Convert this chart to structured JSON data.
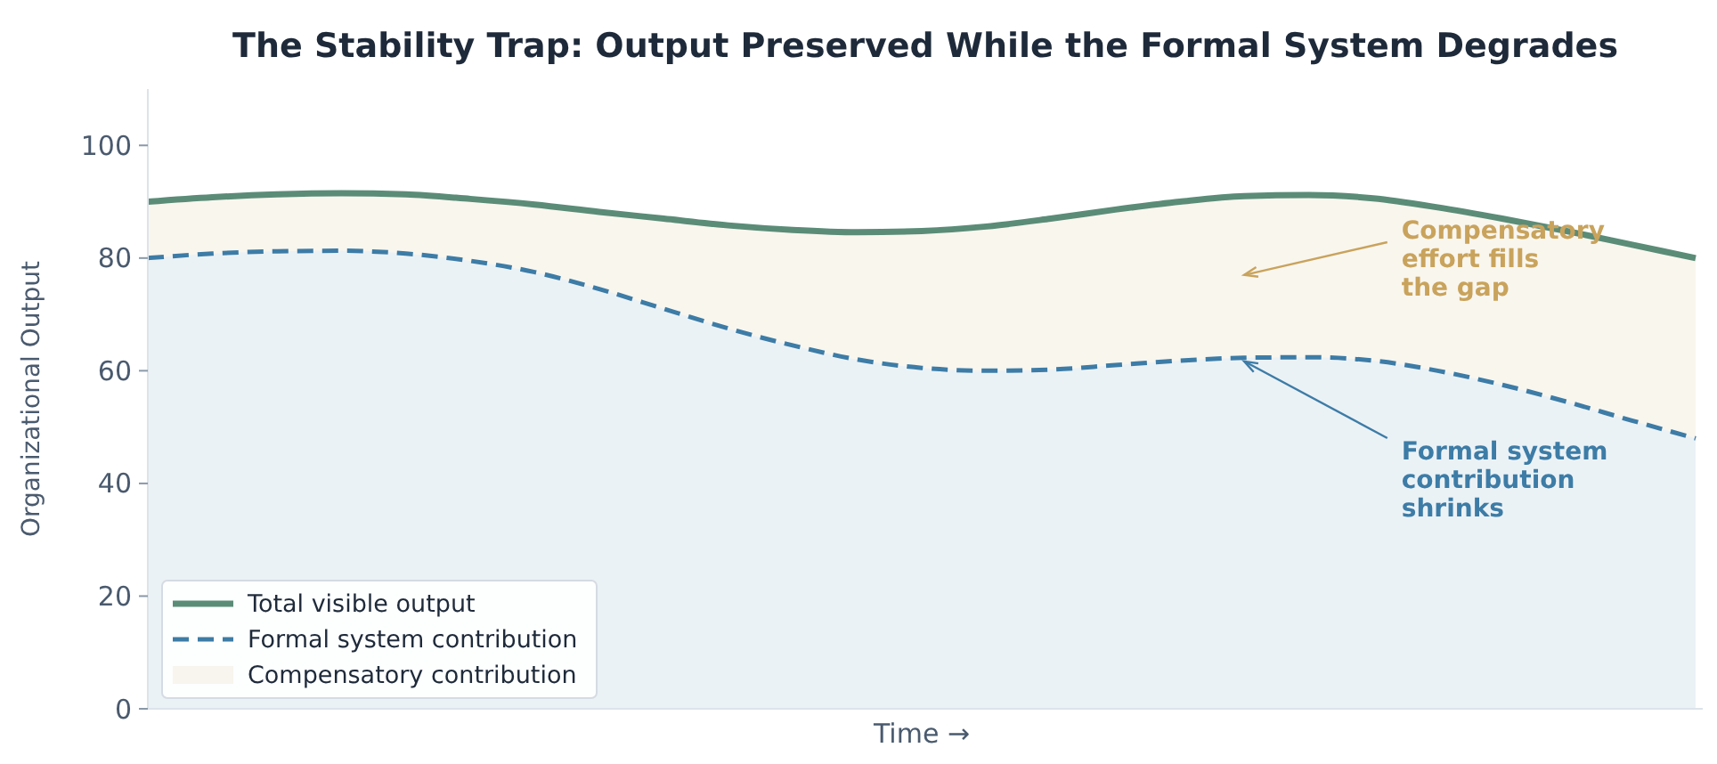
{
  "chart_data": {
    "type": "line",
    "title": "The Stability Trap: Output Preserved While the Formal System Degrades",
    "xlabel": "Time →",
    "ylabel": "Organizational Output",
    "categories": [
      null,
      null,
      null,
      null,
      null,
      null,
      null,
      null,
      null,
      null,
      null,
      null,
      null,
      null,
      null,
      null,
      null,
      null,
      null,
      null,
      null,
      null,
      null,
      null,
      null
    ],
    "stacked": true,
    "series": [
      {
        "name": "Total visible output",
        "color": "#5b8c78",
        "line_style": "solid",
        "values": [
          90,
          90.8,
          91.3,
          91.5,
          91.3,
          90.5,
          89.5,
          88.2,
          87,
          85.8,
          85,
          84.6,
          84.8,
          85.6,
          87,
          88.6,
          90,
          91,
          91.2,
          90.6,
          89,
          87,
          84.8,
          82.4,
          80
        ]
      },
      {
        "name": "Formal system contribution",
        "type": "area",
        "color": "#3d7ca6",
        "line_style": "dashed",
        "values": [
          80,
          80.8,
          81.2,
          81.3,
          80.8,
          79.5,
          77.5,
          74.5,
          71,
          67.5,
          64.5,
          62,
          60.5,
          60,
          60.2,
          61,
          61.8,
          62.3,
          62.4,
          61.8,
          60,
          57.5,
          54.5,
          51.2,
          48
        ]
      },
      {
        "name": "Compensatory contribution",
        "type": "area",
        "color": "#c9a35c",
        "values": [
          10,
          10,
          10.1,
          10.2,
          10.5,
          11,
          12,
          13.7,
          16,
          18.3,
          20.5,
          22.6,
          24.3,
          25.6,
          26.8,
          27.6,
          28.2,
          28.7,
          28.8,
          28.8,
          29,
          29.5,
          30.3,
          31.2,
          32
        ]
      }
    ],
    "annotations": [
      "Compensatory effort fills the gap",
      "Formal system contribution shrinks"
    ],
    "ylim": [
      0,
      110
    ],
    "yticks": [
      0,
      20,
      40,
      60,
      80,
      100
    ],
    "tick_labels": "y",
    "legend": "bottom left"
  }
}
